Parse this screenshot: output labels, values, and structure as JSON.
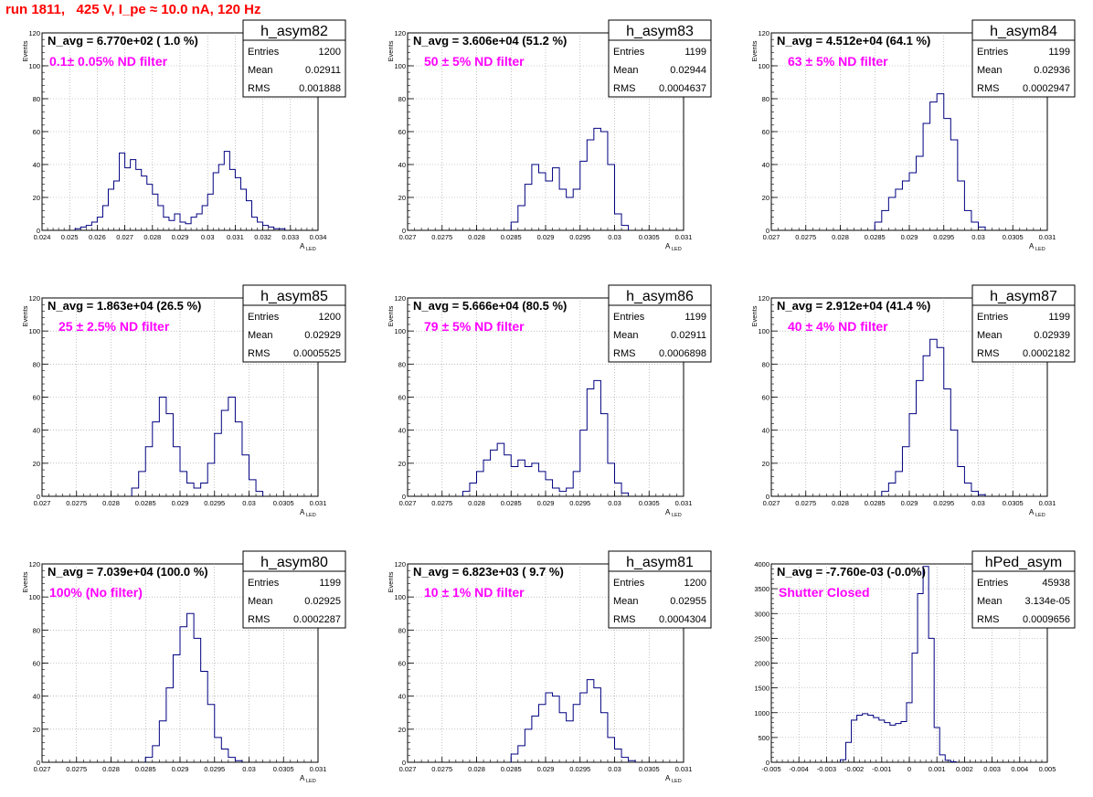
{
  "page_title": "run 1811,   425 V, I_pe ≈ 10.0 nA, 120 Hz",
  "stats_labels": {
    "entries": "Entries",
    "mean": "Mean",
    "rms": "RMS"
  },
  "colors": {
    "histogram_line": "#000080",
    "title_red": "#ff0000",
    "annotation_magenta": "#ff00ff",
    "grid": "#999999"
  },
  "chart_data": [
    {
      "type": "histogram",
      "name": "h_asym82",
      "navg_label": "N_avg = 6.770e+02 ( 1.0 %)",
      "filter_label": "0.1± 0.05% ND filter",
      "stats": {
        "entries": "1200",
        "mean": "0.02911",
        "rms": "0.001888"
      },
      "xlabel": "A",
      "xlabel_sub": "LED",
      "ylabel": "Events",
      "xlim": [
        0.024,
        0.034
      ],
      "ylim": [
        0,
        120
      ],
      "xticks": [
        "0.024",
        "0.025",
        "0.026",
        "0.027",
        "0.028",
        "0.029",
        "0.03",
        "0.031",
        "0.032",
        "0.033",
        "0.034"
      ],
      "yticks": [
        "0",
        "20",
        "40",
        "60",
        "80",
        "100",
        "120"
      ],
      "bins": {
        "x": [
          0.0253,
          0.0255,
          0.0257,
          0.0259,
          0.0261,
          0.0263,
          0.0265,
          0.0267,
          0.0269,
          0.0271,
          0.0273,
          0.0275,
          0.0277,
          0.0279,
          0.0281,
          0.0283,
          0.0285,
          0.0287,
          0.0289,
          0.0291,
          0.0293,
          0.0295,
          0.0297,
          0.0299,
          0.0301,
          0.0303,
          0.0305,
          0.0307,
          0.0309,
          0.0311,
          0.0313,
          0.0315,
          0.0317,
          0.0319,
          0.0321,
          0.0323,
          0.0325,
          0.0327
        ],
        "y": [
          1,
          2,
          3,
          5,
          8,
          15,
          25,
          30,
          47,
          38,
          43,
          37,
          33,
          28,
          22,
          15,
          8,
          6,
          10,
          5,
          4,
          8,
          10,
          15,
          22,
          35,
          40,
          48,
          37,
          32,
          25,
          18,
          8,
          5,
          3,
          2,
          1,
          1
        ]
      }
    },
    {
      "type": "histogram",
      "name": "h_asym83",
      "navg_label": "N_avg = 3.606e+04 (51.2 %)",
      "filter_label": "50 ± 5% ND filter",
      "stats": {
        "entries": "1199",
        "mean": "0.02944",
        "rms": "0.0004637"
      },
      "xlabel": "A",
      "xlabel_sub": "LED",
      "ylabel": "Events",
      "xlim": [
        0.027,
        0.031
      ],
      "ylim": [
        0,
        120
      ],
      "xticks": [
        "0.027",
        "0.0275",
        "0.028",
        "0.0285",
        "0.029",
        "0.0295",
        "0.03",
        "0.0305",
        "0.031"
      ],
      "yticks": [
        "0",
        "20",
        "40",
        "60",
        "80",
        "100",
        "120"
      ],
      "bins": {
        "x": [
          0.02855,
          0.02865,
          0.02875,
          0.02885,
          0.02895,
          0.02905,
          0.02915,
          0.02925,
          0.02935,
          0.02945,
          0.02955,
          0.02965,
          0.02975,
          0.02985,
          0.02995,
          0.03005,
          0.03015
        ],
        "y": [
          5,
          15,
          28,
          40,
          35,
          30,
          38,
          25,
          20,
          25,
          42,
          55,
          62,
          60,
          40,
          10,
          3
        ]
      }
    },
    {
      "type": "histogram",
      "name": "h_asym84",
      "navg_label": "N_avg = 4.512e+04 (64.1 %)",
      "filter_label": "63 ± 5% ND filter",
      "stats": {
        "entries": "1199",
        "mean": "0.02936",
        "rms": "0.0002947"
      },
      "xlabel": "A",
      "xlabel_sub": "LED",
      "ylabel": "Events",
      "xlim": [
        0.027,
        0.031
      ],
      "ylim": [
        0,
        120
      ],
      "xticks": [
        "0.027",
        "0.0275",
        "0.028",
        "0.0285",
        "0.029",
        "0.0295",
        "0.03",
        "0.0305",
        "0.031"
      ],
      "yticks": [
        "0",
        "20",
        "40",
        "60",
        "80",
        "100",
        "120"
      ],
      "bins": {
        "x": [
          0.02855,
          0.02865,
          0.02875,
          0.02885,
          0.02895,
          0.02905,
          0.02915,
          0.02925,
          0.02935,
          0.02945,
          0.02955,
          0.02965,
          0.02975,
          0.02985,
          0.02995,
          0.03005
        ],
        "y": [
          5,
          12,
          20,
          25,
          30,
          35,
          45,
          65,
          78,
          83,
          68,
          55,
          30,
          12,
          5,
          2
        ]
      }
    },
    {
      "type": "histogram",
      "name": "h_asym85",
      "navg_label": "N_avg = 1.863e+04 (26.5 %)",
      "filter_label": "25 ± 2.5% ND filter",
      "stats": {
        "entries": "1200",
        "mean": "0.02929",
        "rms": "0.0005525"
      },
      "xlabel": "A",
      "xlabel_sub": "LED",
      "ylabel": "Events",
      "xlim": [
        0.027,
        0.031
      ],
      "ylim": [
        0,
        120
      ],
      "xticks": [
        "0.027",
        "0.0275",
        "0.028",
        "0.0285",
        "0.029",
        "0.0295",
        "0.03",
        "0.0305",
        "0.031"
      ],
      "yticks": [
        "0",
        "20",
        "40",
        "60",
        "80",
        "100",
        "120"
      ],
      "bins": {
        "x": [
          0.02835,
          0.02845,
          0.02855,
          0.02865,
          0.02875,
          0.02885,
          0.02895,
          0.02905,
          0.02915,
          0.02925,
          0.02935,
          0.02945,
          0.02955,
          0.02965,
          0.02975,
          0.02985,
          0.02995,
          0.03005,
          0.03015
        ],
        "y": [
          5,
          15,
          30,
          45,
          60,
          50,
          30,
          15,
          8,
          5,
          8,
          20,
          38,
          52,
          60,
          45,
          25,
          10,
          3
        ]
      }
    },
    {
      "type": "histogram",
      "name": "h_asym86",
      "navg_label": "N_avg = 5.666e+04 (80.5 %)",
      "filter_label": "79 ± 5% ND filter",
      "stats": {
        "entries": "1199",
        "mean": "0.02911",
        "rms": "0.0006898"
      },
      "xlabel": "A",
      "xlabel_sub": "LED",
      "ylabel": "Events",
      "xlim": [
        0.027,
        0.031
      ],
      "ylim": [
        0,
        120
      ],
      "xticks": [
        "0.027",
        "0.0275",
        "0.028",
        "0.0285",
        "0.029",
        "0.0295",
        "0.03",
        "0.0305",
        "0.031"
      ],
      "yticks": [
        "0",
        "20",
        "40",
        "60",
        "80",
        "100",
        "120"
      ],
      "bins": {
        "x": [
          0.02785,
          0.02795,
          0.02805,
          0.02815,
          0.02825,
          0.02835,
          0.02845,
          0.02855,
          0.02865,
          0.02875,
          0.02885,
          0.02895,
          0.02905,
          0.02915,
          0.02925,
          0.02935,
          0.02945,
          0.02955,
          0.02965,
          0.02975,
          0.02985,
          0.02995,
          0.03005,
          0.03015
        ],
        "y": [
          3,
          8,
          15,
          22,
          28,
          32,
          25,
          18,
          22,
          18,
          20,
          15,
          10,
          5,
          3,
          5,
          15,
          40,
          65,
          70,
          50,
          20,
          8,
          2
        ]
      }
    },
    {
      "type": "histogram",
      "name": "h_asym87",
      "navg_label": "N_avg = 2.912e+04 (41.4 %)",
      "filter_label": "40 ± 4% ND filter",
      "stats": {
        "entries": "1199",
        "mean": "0.02939",
        "rms": "0.0002182"
      },
      "xlabel": "A",
      "xlabel_sub": "LED",
      "ylabel": "Events",
      "xlim": [
        0.027,
        0.031
      ],
      "ylim": [
        0,
        120
      ],
      "xticks": [
        "0.027",
        "0.0275",
        "0.028",
        "0.0285",
        "0.029",
        "0.0295",
        "0.03",
        "0.0305",
        "0.031"
      ],
      "yticks": [
        "0",
        "20",
        "40",
        "60",
        "80",
        "100",
        "120"
      ],
      "bins": {
        "x": [
          0.02865,
          0.02875,
          0.02885,
          0.02895,
          0.02905,
          0.02915,
          0.02925,
          0.02935,
          0.02945,
          0.02955,
          0.02965,
          0.02975,
          0.02985,
          0.02995,
          0.03005
        ],
        "y": [
          3,
          8,
          15,
          30,
          50,
          70,
          85,
          95,
          90,
          65,
          40,
          18,
          8,
          3,
          1
        ]
      }
    },
    {
      "type": "histogram",
      "name": "h_asym80",
      "navg_label": "N_avg = 7.039e+04 (100.0 %)",
      "filter_label": "100% (No filter)",
      "stats": {
        "entries": "1199",
        "mean": "0.02925",
        "rms": "0.0002287"
      },
      "xlabel": "A",
      "xlabel_sub": "LED",
      "ylabel": "Events",
      "xlim": [
        0.027,
        0.031
      ],
      "ylim": [
        0,
        120
      ],
      "xticks": [
        "0.027",
        "0.0275",
        "0.028",
        "0.0285",
        "0.029",
        "0.0295",
        "0.03",
        "0.0305",
        "0.031"
      ],
      "yticks": [
        "0",
        "20",
        "40",
        "60",
        "80",
        "100",
        "120"
      ],
      "bins": {
        "x": [
          0.02855,
          0.02865,
          0.02875,
          0.02885,
          0.02895,
          0.02905,
          0.02915,
          0.02925,
          0.02935,
          0.02945,
          0.02955,
          0.02965,
          0.02975,
          0.02985
        ],
        "y": [
          3,
          10,
          25,
          45,
          65,
          82,
          90,
          75,
          55,
          35,
          15,
          8,
          3,
          1
        ]
      }
    },
    {
      "type": "histogram",
      "name": "h_asym81",
      "navg_label": "N_avg = 6.823e+03 ( 9.7 %)",
      "filter_label": "10 ± 1% ND filter",
      "stats": {
        "entries": "1200",
        "mean": "0.02955",
        "rms": "0.0004304"
      },
      "xlabel": "A",
      "xlabel_sub": "LED",
      "ylabel": "Events",
      "xlim": [
        0.027,
        0.031
      ],
      "ylim": [
        0,
        120
      ],
      "xticks": [
        "0.027",
        "0.0275",
        "0.028",
        "0.0285",
        "0.029",
        "0.0295",
        "0.03",
        "0.0305",
        "0.031"
      ],
      "yticks": [
        "0",
        "20",
        "40",
        "60",
        "80",
        "100",
        "120"
      ],
      "bins": {
        "x": [
          0.02855,
          0.02865,
          0.02875,
          0.02885,
          0.02895,
          0.02905,
          0.02915,
          0.02925,
          0.02935,
          0.02945,
          0.02955,
          0.02965,
          0.02975,
          0.02985,
          0.02995,
          0.03005,
          0.03015,
          0.03025
        ],
        "y": [
          5,
          10,
          20,
          28,
          35,
          42,
          40,
          30,
          25,
          35,
          42,
          50,
          45,
          30,
          15,
          8,
          3,
          1
        ]
      }
    },
    {
      "type": "histogram",
      "name": "hPed_asym",
      "navg_label": "N_avg = -7.760e-03 (-0.0%)",
      "filter_label": "Shutter Closed",
      "stats": {
        "entries": "45938",
        "mean": "3.134e-05",
        "rms": "0.0009656"
      },
      "xlabel": "",
      "xlabel_sub": "",
      "ylabel": "",
      "xlim": [
        -0.005,
        0.005
      ],
      "ylim": [
        0,
        4000
      ],
      "xticks": [
        "-0.005",
        "-0.004",
        "-0.003",
        "-0.002",
        "-0.001",
        "0",
        "0.001",
        "0.002",
        "0.003",
        "0.004",
        "0.005"
      ],
      "yticks": [
        "0",
        "500",
        "1000",
        "1500",
        "2000",
        "2500",
        "3000",
        "3500",
        "4000"
      ],
      "bins": {
        "x": [
          -0.0024,
          -0.0022,
          -0.002,
          -0.0018,
          -0.0016,
          -0.0014,
          -0.0012,
          -0.001,
          -0.0008,
          -0.0006,
          -0.0004,
          -0.0002,
          0.0,
          0.0002,
          0.0004,
          0.0006,
          0.0008,
          0.001,
          0.0012,
          0.0014,
          0.0016
        ],
        "y": [
          50,
          400,
          850,
          950,
          980,
          950,
          900,
          850,
          800,
          750,
          780,
          820,
          1200,
          2200,
          3400,
          3950,
          2500,
          700,
          150,
          40,
          10
        ]
      }
    }
  ]
}
